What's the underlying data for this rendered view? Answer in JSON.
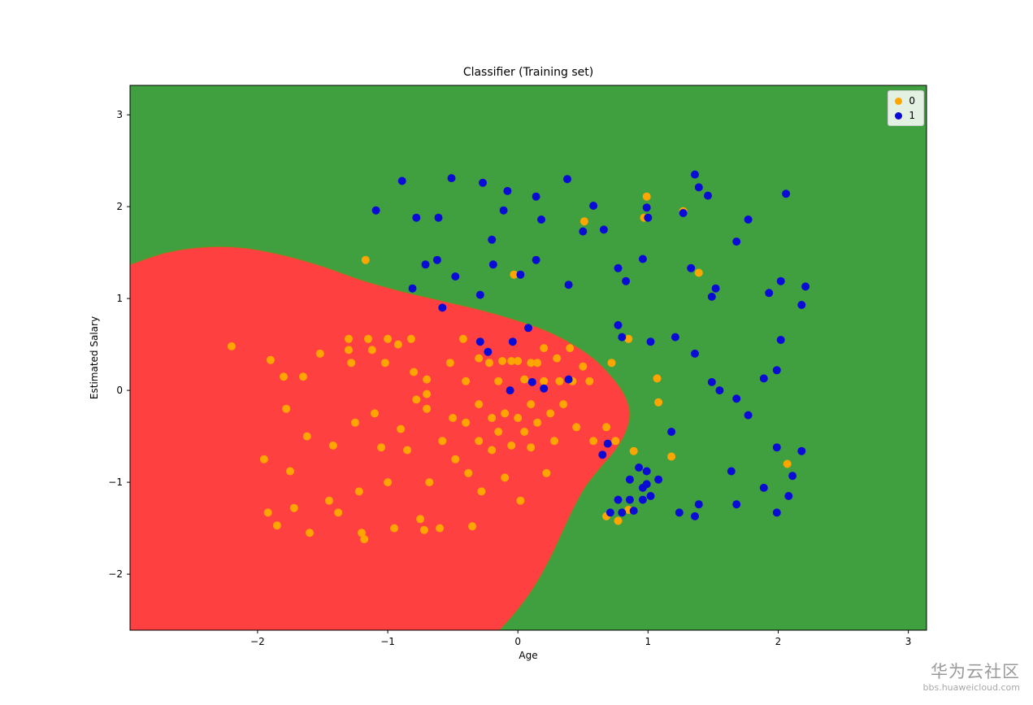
{
  "title": "Classifier (Training set)",
  "watermark": {
    "line1": "华为云社区",
    "line2": "bbs.huaweicloud.com"
  },
  "chart_data": {
    "type": "scatter",
    "title": "Classifier (Training set)",
    "xlabel": "Age",
    "ylabel": "Estimated Salary",
    "xlim": [
      -2.98,
      3.14
    ],
    "ylim": [
      -2.61,
      3.32
    ],
    "xticks": [
      -2,
      -1,
      0,
      1,
      2,
      3
    ],
    "yticks": [
      -2,
      -1,
      0,
      1,
      2,
      3
    ],
    "grid": false,
    "legend": {
      "position": "upper right",
      "entries": [
        {
          "label": "0",
          "color": "#ffa500"
        },
        {
          "label": "1",
          "color": "#0b0bd6"
        }
      ]
    },
    "regions": {
      "background_color": "#40a040",
      "blob_color": "#ff4040",
      "blob_boundary": [
        [
          -2.98,
          1.37
        ],
        [
          -2.7,
          1.5
        ],
        [
          -2.4,
          1.56
        ],
        [
          -2.1,
          1.55
        ],
        [
          -1.8,
          1.47
        ],
        [
          -1.5,
          1.35
        ],
        [
          -1.2,
          1.2
        ],
        [
          -0.9,
          1.08
        ],
        [
          -0.6,
          0.98
        ],
        [
          -0.3,
          0.88
        ],
        [
          -0.05,
          0.78
        ],
        [
          0.2,
          0.66
        ],
        [
          0.4,
          0.52
        ],
        [
          0.58,
          0.35
        ],
        [
          0.72,
          0.15
        ],
        [
          0.82,
          -0.05
        ],
        [
          0.86,
          -0.25
        ],
        [
          0.83,
          -0.45
        ],
        [
          0.75,
          -0.65
        ],
        [
          0.63,
          -0.85
        ],
        [
          0.52,
          -1.05
        ],
        [
          0.43,
          -1.28
        ],
        [
          0.34,
          -1.55
        ],
        [
          0.24,
          -1.85
        ],
        [
          0.12,
          -2.15
        ],
        [
          -0.02,
          -2.42
        ],
        [
          -0.14,
          -2.61
        ]
      ]
    },
    "series": [
      {
        "name": "0",
        "color": "#ffa500",
        "points": [
          [
            -2.2,
            0.48
          ],
          [
            -1.95,
            -0.75
          ],
          [
            -1.9,
            0.33
          ],
          [
            -1.92,
            -1.33
          ],
          [
            -1.85,
            -1.47
          ],
          [
            -1.8,
            0.15
          ],
          [
            -1.78,
            -0.2
          ],
          [
            -1.72,
            -1.28
          ],
          [
            -1.75,
            -0.88
          ],
          [
            -1.65,
            0.15
          ],
          [
            -1.62,
            -0.5
          ],
          [
            -1.6,
            -1.55
          ],
          [
            -1.52,
            0.4
          ],
          [
            -1.45,
            -1.2
          ],
          [
            -1.42,
            -0.6
          ],
          [
            -1.38,
            -1.33
          ],
          [
            -1.3,
            0.56
          ],
          [
            -1.3,
            0.44
          ],
          [
            -1.28,
            0.3
          ],
          [
            -1.25,
            -0.35
          ],
          [
            -1.22,
            -1.1
          ],
          [
            -1.2,
            -1.55
          ],
          [
            -1.18,
            -1.62
          ],
          [
            -1.15,
            0.56
          ],
          [
            -1.12,
            0.44
          ],
          [
            -1.1,
            -0.25
          ],
          [
            -1.05,
            -0.62
          ],
          [
            -1.0,
            0.56
          ],
          [
            -1.02,
            0.3
          ],
          [
            -1.0,
            -1.0
          ],
          [
            -0.95,
            -1.5
          ],
          [
            -0.92,
            0.5
          ],
          [
            -0.9,
            -0.42
          ],
          [
            -0.85,
            -0.65
          ],
          [
            -0.82,
            0.56
          ],
          [
            -0.8,
            0.2
          ],
          [
            -0.78,
            -0.1
          ],
          [
            -0.75,
            -1.4
          ],
          [
            -0.72,
            -1.52
          ],
          [
            -0.7,
            0.12
          ],
          [
            -0.7,
            -0.04
          ],
          [
            -0.7,
            -0.2
          ],
          [
            -0.68,
            -1.0
          ],
          [
            -0.6,
            -1.5
          ],
          [
            -0.58,
            -0.55
          ],
          [
            -0.52,
            0.3
          ],
          [
            -0.5,
            -0.3
          ],
          [
            -0.48,
            -0.75
          ],
          [
            -0.42,
            0.56
          ],
          [
            -0.4,
            0.1
          ],
          [
            -0.4,
            -0.35
          ],
          [
            -0.38,
            -0.9
          ],
          [
            -0.35,
            -1.48
          ],
          [
            -0.3,
            0.35
          ],
          [
            -0.3,
            -0.15
          ],
          [
            -0.3,
            -0.55
          ],
          [
            -0.28,
            -1.1
          ],
          [
            -0.22,
            0.3
          ],
          [
            -0.2,
            -0.3
          ],
          [
            -0.2,
            -0.65
          ],
          [
            -0.15,
            0.1
          ],
          [
            -0.15,
            -0.45
          ],
          [
            -0.12,
            0.32
          ],
          [
            -0.1,
            -0.25
          ],
          [
            -0.1,
            -0.95
          ],
          [
            -0.05,
            0.32
          ],
          [
            -0.05,
            -0.6
          ],
          [
            0.0,
            0.32
          ],
          [
            0.0,
            -0.3
          ],
          [
            0.02,
            -1.2
          ],
          [
            0.05,
            0.12
          ],
          [
            0.05,
            -0.45
          ],
          [
            0.1,
            0.3
          ],
          [
            0.1,
            -0.15
          ],
          [
            0.1,
            -0.62
          ],
          [
            0.15,
            0.3
          ],
          [
            0.15,
            -0.35
          ],
          [
            0.2,
            0.46
          ],
          [
            0.2,
            0.1
          ],
          [
            0.22,
            -0.9
          ],
          [
            0.25,
            -0.25
          ],
          [
            0.28,
            -0.55
          ],
          [
            0.3,
            0.35
          ],
          [
            0.32,
            0.1
          ],
          [
            0.35,
            -0.15
          ],
          [
            0.4,
            0.46
          ],
          [
            0.42,
            0.1
          ],
          [
            0.45,
            -0.4
          ],
          [
            0.5,
            0.26
          ],
          [
            0.55,
            0.1
          ],
          [
            0.58,
            -0.55
          ],
          [
            0.68,
            -0.4
          ],
          [
            0.75,
            -0.55
          ],
          [
            0.72,
            0.3
          ],
          [
            -1.17,
            1.42
          ],
          [
            0.51,
            1.84
          ],
          [
            0.99,
            2.11
          ],
          [
            0.97,
            1.88
          ],
          [
            1.27,
            1.95
          ],
          [
            1.39,
            1.28
          ],
          [
            -0.03,
            1.26
          ],
          [
            0.85,
            0.56
          ],
          [
            1.07,
            0.13
          ],
          [
            1.08,
            -0.13
          ],
          [
            0.89,
            -0.66
          ],
          [
            1.18,
            -0.72
          ],
          [
            2.07,
            -0.8
          ],
          [
            0.77,
            -1.42
          ],
          [
            0.68,
            -1.37
          ],
          [
            0.85,
            -1.3
          ]
        ]
      },
      {
        "name": "1",
        "color": "#0b0bd6",
        "points": [
          [
            -1.09,
            1.96
          ],
          [
            -0.89,
            2.28
          ],
          [
            -0.78,
            1.88
          ],
          [
            -0.61,
            1.88
          ],
          [
            -0.51,
            2.31
          ],
          [
            -0.48,
            1.24
          ],
          [
            -0.62,
            1.42
          ],
          [
            -0.71,
            1.37
          ],
          [
            -0.81,
            1.11
          ],
          [
            -0.58,
            0.9
          ],
          [
            -0.27,
            2.26
          ],
          [
            -0.2,
            1.64
          ],
          [
            -0.19,
            1.37
          ],
          [
            -0.29,
            1.04
          ],
          [
            -0.08,
            2.17
          ],
          [
            -0.11,
            1.96
          ],
          [
            0.14,
            2.11
          ],
          [
            0.18,
            1.86
          ],
          [
            0.38,
            2.3
          ],
          [
            0.58,
            2.01
          ],
          [
            0.5,
            1.73
          ],
          [
            0.66,
            1.75
          ],
          [
            0.14,
            1.42
          ],
          [
            0.02,
            1.26
          ],
          [
            0.39,
            1.15
          ],
          [
            -0.29,
            0.53
          ],
          [
            -0.23,
            0.42
          ],
          [
            -0.04,
            0.53
          ],
          [
            0.08,
            0.68
          ],
          [
            0.99,
            1.99
          ],
          [
            1.0,
            1.88
          ],
          [
            1.27,
            1.93
          ],
          [
            1.36,
            2.35
          ],
          [
            1.39,
            2.21
          ],
          [
            1.46,
            2.12
          ],
          [
            1.77,
            1.86
          ],
          [
            2.06,
            2.14
          ],
          [
            1.68,
            1.62
          ],
          [
            0.77,
            1.33
          ],
          [
            0.83,
            1.19
          ],
          [
            0.96,
            1.43
          ],
          [
            1.33,
            1.33
          ],
          [
            1.49,
            1.02
          ],
          [
            1.52,
            1.11
          ],
          [
            1.93,
            1.06
          ],
          [
            2.02,
            1.19
          ],
          [
            2.21,
            1.13
          ],
          [
            2.18,
            0.93
          ],
          [
            0.77,
            0.71
          ],
          [
            0.8,
            0.58
          ],
          [
            1.02,
            0.53
          ],
          [
            1.21,
            0.58
          ],
          [
            1.36,
            0.4
          ],
          [
            1.49,
            0.09
          ],
          [
            1.55,
            0.0
          ],
          [
            1.89,
            0.13
          ],
          [
            1.99,
            0.22
          ],
          [
            1.77,
            -0.27
          ],
          [
            2.02,
            0.55
          ],
          [
            -0.06,
            0.0
          ],
          [
            0.11,
            0.09
          ],
          [
            0.39,
            0.12
          ],
          [
            0.2,
            0.02
          ],
          [
            0.69,
            -0.58
          ],
          [
            0.93,
            -0.84
          ],
          [
            0.99,
            -0.88
          ],
          [
            0.86,
            -0.97
          ],
          [
            0.96,
            -1.06
          ],
          [
            0.77,
            -1.19
          ],
          [
            0.86,
            -1.19
          ],
          [
            0.96,
            -1.19
          ],
          [
            0.71,
            -1.33
          ],
          [
            0.8,
            -1.33
          ],
          [
            0.89,
            -1.31
          ],
          [
            1.02,
            -1.15
          ],
          [
            0.99,
            -1.02
          ],
          [
            1.08,
            -0.97
          ],
          [
            1.24,
            -1.33
          ],
          [
            1.36,
            -1.37
          ],
          [
            1.39,
            -1.24
          ],
          [
            1.64,
            -0.88
          ],
          [
            1.68,
            -1.24
          ],
          [
            1.89,
            -1.06
          ],
          [
            1.99,
            -1.33
          ],
          [
            2.08,
            -1.15
          ],
          [
            2.11,
            -0.93
          ],
          [
            2.18,
            -0.66
          ],
          [
            1.99,
            -0.62
          ],
          [
            1.68,
            -0.09
          ],
          [
            1.18,
            -0.45
          ],
          [
            0.65,
            -0.7
          ]
        ]
      }
    ]
  }
}
